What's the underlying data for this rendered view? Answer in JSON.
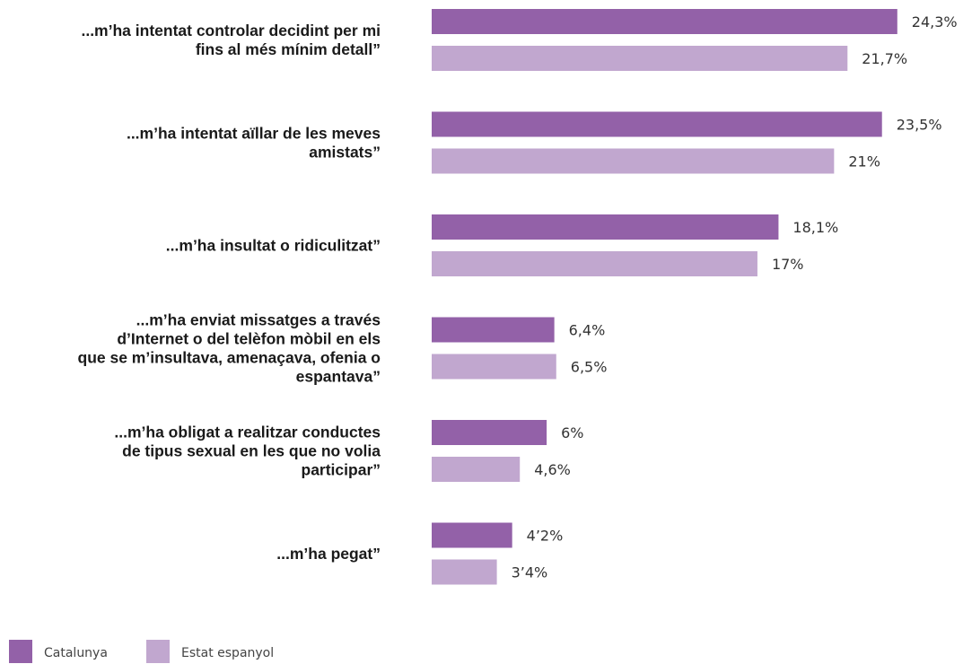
{
  "chart_data": {
    "type": "bar",
    "orientation": "horizontal",
    "categories": [
      [
        "...m’ha intentat controlar decidint per mi",
        "fins al més mínim detall”"
      ],
      [
        "...m’ha intentat aïllar de les meves",
        "amistats”"
      ],
      [
        "...m’ha insultat o ridiculitzat”"
      ],
      [
        "...m’ha enviat missatges a través",
        "d’Internet o del telèfon mòbil en els",
        "que se m’insultava, amenaçava, ofenia o",
        "espantava”"
      ],
      [
        "...m’ha obligat a realitzar conductes",
        "de tipus sexual en les que no volia",
        "participar”"
      ],
      [
        "...m’ha pegat”"
      ]
    ],
    "series": [
      {
        "name": "Catalunya",
        "color": "#9361a8",
        "values": [
          24.3,
          23.5,
          18.1,
          6.4,
          6.0,
          4.2
        ],
        "labels": [
          "24,3%",
          "23,5%",
          "18,1%",
          "6,4%",
          "6%",
          "4’2%"
        ]
      },
      {
        "name": "Estat espanyol",
        "color": "#c1a7cf",
        "values": [
          21.7,
          21.0,
          17.0,
          6.5,
          4.6,
          3.4
        ],
        "labels": [
          "21,7%",
          "21%",
          "17%",
          "6,5%",
          "4,6%",
          "3’4%"
        ]
      }
    ],
    "xlim": [
      0,
      25
    ],
    "grid": false,
    "legend_position": "bottom-left"
  }
}
